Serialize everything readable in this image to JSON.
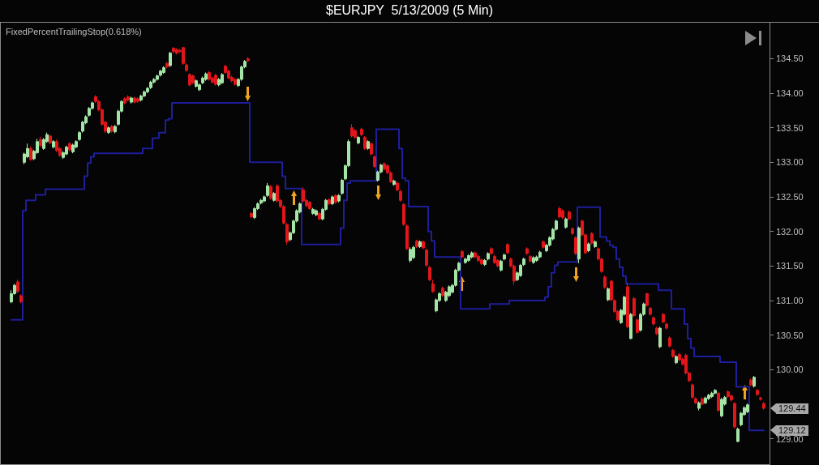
{
  "chart_data": {
    "type": "candlestick",
    "title": "$EURJPY  5/13/2009 (5 Min)",
    "subtitle": "FixedPercentTrailingStop(0.618%)",
    "categories": [
      null,
      null,
      null,
      null,
      null,
      null,
      null,
      null,
      null,
      null,
      null,
      null,
      null,
      null,
      null,
      null,
      null,
      null,
      null,
      null,
      null,
      null,
      null,
      null,
      null,
      null,
      null,
      null,
      null,
      null,
      null,
      null,
      null,
      null,
      null,
      null,
      null,
      null,
      null,
      null,
      null,
      null,
      null,
      null,
      null,
      null,
      null,
      null,
      null,
      null,
      null,
      null,
      null,
      null,
      null,
      null,
      null,
      null,
      null,
      null,
      null,
      null,
      null,
      null,
      null,
      null,
      null,
      null,
      null,
      null,
      null,
      null,
      null,
      null,
      null,
      null,
      null,
      null,
      null,
      null,
      null,
      null,
      null,
      null,
      null,
      null,
      null,
      null,
      null,
      null,
      null,
      null,
      null,
      null,
      null,
      null,
      null,
      null,
      null,
      null,
      null,
      null,
      null,
      null,
      null,
      null,
      null,
      null,
      null,
      null,
      null,
      null,
      null,
      null,
      null,
      null,
      null,
      null,
      null,
      null,
      null,
      null,
      null,
      null,
      null,
      null,
      null,
      null,
      null,
      null,
      null,
      null,
      null,
      null,
      null,
      null,
      null,
      null,
      null,
      null,
      null,
      null,
      null,
      null,
      null,
      null,
      null,
      null,
      null,
      null,
      null,
      null,
      null,
      null,
      null,
      null,
      null,
      null,
      null,
      null,
      null,
      null,
      null,
      null,
      null,
      null,
      null,
      null,
      null,
      null,
      null,
      null,
      null,
      null,
      null,
      null,
      null,
      null,
      null,
      null,
      null,
      null,
      null,
      null,
      null,
      null,
      null,
      null,
      null,
      null,
      null,
      null,
      null,
      null,
      null,
      null,
      null,
      null,
      null,
      null,
      null,
      null,
      null,
      null,
      null,
      null,
      null,
      null,
      null,
      null,
      null,
      null,
      null,
      null,
      null,
      null,
      null,
      null,
      null,
      null,
      null,
      null,
      null,
      null,
      null,
      null,
      null,
      null,
      null,
      null,
      null,
      null,
      null
    ],
    "ohlc": [
      [
        130.98,
        131.15,
        130.96,
        131.1
      ],
      [
        131.1,
        131.24,
        131.08,
        131.22
      ],
      [
        131.27,
        131.3,
        131.11,
        131.13
      ],
      [
        131.07,
        131.09,
        130.96,
        130.98
      ],
      [
        133.0,
        133.14,
        132.97,
        133.12
      ],
      [
        133.08,
        133.27,
        133.06,
        133.2
      ],
      [
        133.2,
        133.23,
        133.02,
        133.04
      ],
      [
        133.05,
        133.18,
        133.03,
        133.16
      ],
      [
        133.14,
        133.34,
        133.12,
        133.3
      ],
      [
        133.33,
        133.37,
        133.22,
        133.24
      ],
      [
        133.2,
        133.35,
        133.18,
        133.33
      ],
      [
        133.3,
        133.43,
        133.28,
        133.4
      ],
      [
        133.38,
        133.4,
        133.26,
        133.28
      ],
      [
        133.22,
        133.32,
        133.2,
        133.3
      ],
      [
        133.3,
        133.33,
        133.15,
        133.17
      ],
      [
        133.2,
        133.22,
        133.08,
        133.1
      ],
      [
        133.07,
        133.16,
        133.05,
        133.14
      ],
      [
        133.12,
        133.24,
        133.1,
        133.22
      ],
      [
        133.27,
        133.29,
        133.16,
        133.18
      ],
      [
        133.15,
        133.27,
        133.13,
        133.25
      ],
      [
        133.22,
        133.32,
        133.2,
        133.3
      ],
      [
        133.33,
        133.45,
        133.31,
        133.43
      ],
      [
        133.45,
        133.6,
        133.43,
        133.58
      ],
      [
        133.57,
        133.68,
        133.55,
        133.66
      ],
      [
        133.68,
        133.8,
        133.66,
        133.78
      ],
      [
        133.78,
        133.88,
        133.76,
        133.86
      ],
      [
        133.95,
        133.97,
        133.86,
        133.88
      ],
      [
        133.88,
        133.9,
        133.74,
        133.76
      ],
      [
        133.76,
        133.78,
        133.53,
        133.55
      ],
      [
        133.58,
        133.6,
        133.42,
        133.45
      ],
      [
        133.43,
        133.52,
        133.41,
        133.5
      ],
      [
        133.52,
        133.54,
        133.43,
        133.45
      ],
      [
        133.44,
        133.54,
        133.42,
        133.52
      ],
      [
        133.55,
        133.76,
        133.53,
        133.74
      ],
      [
        133.74,
        133.9,
        133.72,
        133.88
      ],
      [
        133.92,
        133.94,
        133.84,
        133.86
      ],
      [
        133.95,
        133.97,
        133.88,
        133.9
      ],
      [
        133.87,
        133.95,
        133.85,
        133.93
      ],
      [
        133.93,
        133.95,
        133.85,
        133.87
      ],
      [
        133.92,
        133.94,
        133.86,
        133.88
      ],
      [
        133.9,
        133.98,
        133.88,
        133.96
      ],
      [
        133.96,
        134.04,
        133.94,
        134.02
      ],
      [
        134.02,
        134.09,
        134.0,
        134.07
      ],
      [
        134.08,
        134.18,
        134.06,
        134.16
      ],
      [
        134.16,
        134.22,
        134.14,
        134.2
      ],
      [
        134.2,
        134.27,
        134.18,
        134.25
      ],
      [
        134.26,
        134.34,
        134.24,
        134.32
      ],
      [
        134.3,
        134.39,
        134.28,
        134.37
      ],
      [
        134.43,
        134.45,
        134.36,
        134.38
      ],
      [
        134.4,
        134.6,
        134.38,
        134.58
      ],
      [
        134.65,
        134.67,
        134.58,
        134.6
      ],
      [
        134.63,
        134.65,
        134.56,
        134.58
      ],
      [
        134.62,
        134.64,
        134.58,
        134.6
      ],
      [
        134.66,
        134.67,
        134.41,
        134.43
      ],
      [
        134.41,
        134.43,
        134.31,
        134.33
      ],
      [
        134.27,
        134.29,
        134.1,
        134.12
      ],
      [
        134.25,
        134.27,
        134.13,
        134.15
      ],
      [
        134.1,
        134.2,
        134.08,
        134.18
      ],
      [
        134.05,
        134.14,
        134.03,
        134.12
      ],
      [
        134.15,
        134.24,
        134.13,
        134.22
      ],
      [
        134.2,
        134.3,
        134.18,
        134.28
      ],
      [
        134.3,
        134.32,
        134.18,
        134.2
      ],
      [
        134.22,
        134.24,
        134.14,
        134.16
      ],
      [
        134.26,
        134.28,
        134.11,
        134.13
      ],
      [
        134.12,
        134.22,
        134.1,
        134.2
      ],
      [
        134.15,
        134.29,
        134.13,
        134.27
      ],
      [
        134.39,
        134.41,
        134.28,
        134.3
      ],
      [
        134.32,
        134.34,
        134.2,
        134.22
      ],
      [
        134.23,
        134.25,
        134.16,
        134.18
      ],
      [
        134.2,
        134.22,
        134.11,
        134.13
      ],
      [
        134.11,
        134.22,
        134.09,
        134.2
      ],
      [
        134.2,
        134.4,
        134.18,
        134.38
      ],
      [
        134.38,
        134.48,
        134.36,
        134.46
      ],
      [
        134.5,
        134.52,
        134.45,
        134.47
      ],
      [
        132.26,
        132.28,
        132.19,
        132.21
      ],
      [
        132.2,
        132.35,
        132.18,
        132.33
      ],
      [
        132.33,
        132.42,
        132.31,
        132.4
      ],
      [
        132.41,
        132.47,
        132.39,
        132.45
      ],
      [
        132.44,
        132.52,
        132.42,
        132.5
      ],
      [
        132.52,
        132.7,
        132.5,
        132.66
      ],
      [
        132.65,
        132.67,
        132.46,
        132.48
      ],
      [
        132.45,
        132.57,
        132.43,
        132.55
      ],
      [
        132.66,
        132.68,
        132.42,
        132.44
      ],
      [
        132.45,
        132.47,
        132.34,
        132.36
      ],
      [
        132.36,
        132.38,
        132.1,
        132.12
      ],
      [
        132.1,
        132.12,
        131.81,
        131.85
      ],
      [
        131.88,
        132.0,
        131.86,
        131.98
      ],
      [
        131.98,
        132.17,
        131.96,
        132.15
      ],
      [
        132.15,
        132.32,
        132.13,
        132.3
      ],
      [
        132.28,
        132.42,
        132.26,
        132.4
      ],
      [
        132.6,
        132.64,
        132.42,
        132.44
      ],
      [
        132.45,
        132.47,
        132.35,
        132.37
      ],
      [
        132.42,
        132.44,
        132.31,
        132.33
      ],
      [
        132.26,
        132.34,
        132.24,
        132.32
      ],
      [
        132.24,
        132.32,
        132.22,
        132.3
      ],
      [
        132.26,
        132.28,
        132.16,
        132.18
      ],
      [
        132.18,
        132.34,
        132.16,
        132.32
      ],
      [
        132.32,
        132.47,
        132.3,
        132.45
      ],
      [
        132.46,
        132.48,
        132.38,
        132.4
      ],
      [
        132.4,
        132.52,
        132.38,
        132.5
      ],
      [
        132.52,
        132.54,
        132.4,
        132.42
      ],
      [
        132.44,
        132.54,
        132.42,
        132.52
      ],
      [
        132.55,
        132.76,
        132.53,
        132.74
      ],
      [
        132.76,
        132.97,
        132.74,
        132.95
      ],
      [
        132.95,
        133.33,
        132.93,
        133.3
      ],
      [
        133.5,
        133.55,
        133.36,
        133.38
      ],
      [
        133.46,
        133.48,
        133.34,
        133.36
      ],
      [
        133.28,
        133.38,
        133.26,
        133.36
      ],
      [
        133.48,
        133.5,
        133.38,
        133.4
      ],
      [
        133.36,
        133.38,
        133.18,
        133.2
      ],
      [
        133.2,
        133.32,
        133.18,
        133.3
      ],
      [
        133.27,
        133.29,
        133.1,
        133.12
      ],
      [
        133.08,
        133.1,
        132.92,
        132.94
      ],
      [
        132.74,
        132.88,
        132.72,
        132.86
      ],
      [
        132.86,
        132.98,
        132.84,
        132.96
      ],
      [
        132.98,
        133.0,
        132.88,
        132.9
      ],
      [
        132.95,
        132.97,
        132.83,
        132.85
      ],
      [
        132.85,
        132.87,
        132.7,
        132.72
      ],
      [
        132.68,
        132.75,
        132.66,
        132.73
      ],
      [
        132.7,
        132.72,
        132.58,
        132.6
      ],
      [
        132.58,
        132.6,
        132.43,
        132.45
      ],
      [
        132.39,
        132.41,
        132.08,
        132.1
      ],
      [
        132.08,
        132.1,
        131.73,
        131.75
      ],
      [
        131.58,
        131.77,
        131.55,
        131.74
      ],
      [
        131.62,
        131.79,
        131.6,
        131.77
      ],
      [
        131.86,
        131.88,
        131.76,
        131.78
      ],
      [
        131.78,
        131.87,
        131.76,
        131.85
      ],
      [
        131.85,
        131.87,
        131.74,
        131.76
      ],
      [
        131.73,
        131.75,
        131.49,
        131.51
      ],
      [
        131.48,
        131.5,
        131.28,
        131.3
      ],
      [
        131.24,
        131.3,
        131.11,
        131.13
      ],
      [
        130.85,
        131.03,
        130.83,
        131.01
      ],
      [
        131.0,
        131.12,
        130.98,
        131.1
      ],
      [
        131.18,
        131.2,
        131.05,
        131.07
      ],
      [
        131.0,
        131.14,
        130.98,
        131.12
      ],
      [
        131.07,
        131.22,
        131.05,
        131.2
      ],
      [
        131.12,
        131.24,
        131.1,
        131.22
      ],
      [
        131.22,
        131.46,
        131.2,
        131.44
      ],
      [
        131.44,
        131.56,
        131.42,
        131.54
      ],
      [
        131.71,
        131.73,
        131.61,
        131.63
      ],
      [
        131.55,
        131.62,
        131.53,
        131.6
      ],
      [
        131.58,
        131.67,
        131.56,
        131.65
      ],
      [
        131.63,
        131.71,
        131.61,
        131.69
      ],
      [
        131.69,
        131.71,
        131.61,
        131.63
      ],
      [
        131.64,
        131.66,
        131.56,
        131.58
      ],
      [
        131.59,
        131.61,
        131.51,
        131.53
      ],
      [
        131.52,
        131.6,
        131.5,
        131.58
      ],
      [
        131.6,
        131.7,
        131.58,
        131.68
      ],
      [
        131.75,
        131.77,
        131.66,
        131.68
      ],
      [
        131.64,
        131.66,
        131.53,
        131.55
      ],
      [
        131.58,
        131.6,
        131.48,
        131.5
      ],
      [
        131.44,
        131.59,
        131.42,
        131.57
      ],
      [
        131.6,
        131.68,
        131.58,
        131.66
      ],
      [
        131.81,
        131.83,
        131.67,
        131.69
      ],
      [
        131.6,
        131.62,
        131.48,
        131.5
      ],
      [
        131.5,
        131.52,
        131.23,
        131.28
      ],
      [
        131.3,
        131.42,
        131.28,
        131.4
      ],
      [
        131.36,
        131.53,
        131.34,
        131.51
      ],
      [
        131.52,
        131.62,
        131.5,
        131.6
      ],
      [
        131.75,
        131.77,
        131.66,
        131.68
      ],
      [
        131.64,
        131.66,
        131.55,
        131.57
      ],
      [
        131.55,
        131.64,
        131.53,
        131.62
      ],
      [
        131.58,
        131.65,
        131.56,
        131.63
      ],
      [
        131.63,
        131.72,
        131.61,
        131.7
      ],
      [
        131.85,
        131.87,
        131.75,
        131.77
      ],
      [
        131.72,
        131.82,
        131.7,
        131.8
      ],
      [
        131.8,
        131.93,
        131.78,
        131.91
      ],
      [
        131.89,
        132.05,
        131.87,
        132.03
      ],
      [
        132.03,
        132.17,
        132.01,
        132.15
      ],
      [
        132.33,
        132.36,
        132.19,
        132.21
      ],
      [
        132.3,
        132.32,
        132.18,
        132.2
      ],
      [
        132.06,
        132.2,
        132.04,
        132.18
      ],
      [
        132.28,
        132.3,
        132.16,
        132.18
      ],
      [
        132.04,
        132.06,
        131.95,
        131.97
      ],
      [
        131.91,
        131.93,
        131.66,
        131.68
      ],
      [
        131.6,
        132.07,
        131.54,
        132.05
      ],
      [
        132.15,
        132.17,
        131.93,
        131.95
      ],
      [
        131.95,
        131.97,
        131.67,
        131.69
      ],
      [
        131.72,
        131.84,
        131.7,
        131.82
      ],
      [
        131.97,
        131.99,
        131.81,
        131.83
      ],
      [
        131.78,
        131.87,
        131.76,
        131.85
      ],
      [
        131.75,
        131.77,
        131.58,
        131.6
      ],
      [
        131.6,
        131.62,
        131.4,
        131.42
      ],
      [
        131.34,
        131.36,
        131.17,
        131.19
      ],
      [
        131.01,
        131.19,
        130.99,
        131.17
      ],
      [
        131.28,
        131.3,
        130.99,
        131.01
      ],
      [
        131.0,
        131.02,
        130.82,
        130.84
      ],
      [
        130.84,
        130.86,
        130.7,
        130.72
      ],
      [
        130.68,
        130.88,
        130.66,
        130.86
      ],
      [
        130.8,
        131.07,
        130.78,
        131.05
      ],
      [
        131.2,
        131.26,
        130.6,
        130.62
      ],
      [
        130.45,
        130.82,
        130.44,
        130.8
      ],
      [
        131.03,
        131.05,
        130.76,
        130.78
      ],
      [
        130.72,
        130.74,
        130.52,
        130.54
      ],
      [
        130.57,
        130.82,
        130.55,
        130.8
      ],
      [
        130.8,
        130.97,
        130.78,
        130.95
      ],
      [
        131.1,
        131.11,
        130.91,
        130.93
      ],
      [
        130.89,
        130.91,
        130.78,
        130.8
      ],
      [
        130.75,
        130.77,
        130.64,
        130.66
      ],
      [
        130.6,
        130.62,
        130.5,
        130.52
      ],
      [
        130.33,
        130.62,
        130.31,
        130.6
      ],
      [
        130.8,
        130.82,
        130.67,
        130.69
      ],
      [
        130.66,
        130.68,
        130.58,
        130.6
      ],
      [
        130.46,
        130.48,
        130.32,
        130.34
      ],
      [
        130.28,
        130.3,
        130.17,
        130.19
      ],
      [
        130.1,
        130.21,
        130.08,
        130.19
      ],
      [
        130.22,
        130.24,
        130.12,
        130.14
      ],
      [
        130.15,
        130.17,
        130.06,
        130.08
      ],
      [
        130.21,
        130.23,
        129.93,
        129.95
      ],
      [
        129.95,
        129.97,
        129.82,
        129.84
      ],
      [
        129.78,
        129.8,
        129.58,
        129.6
      ],
      [
        129.58,
        129.6,
        129.5,
        129.52
      ],
      [
        129.44,
        129.54,
        129.41,
        129.52
      ],
      [
        129.58,
        129.6,
        129.48,
        129.5
      ],
      [
        129.52,
        129.61,
        129.5,
        129.59
      ],
      [
        129.58,
        129.65,
        129.56,
        129.63
      ],
      [
        129.61,
        129.68,
        129.59,
        129.66
      ],
      [
        129.66,
        129.72,
        129.64,
        129.7
      ],
      [
        129.66,
        129.68,
        129.39,
        129.41
      ],
      [
        129.33,
        129.59,
        129.31,
        129.57
      ],
      [
        129.5,
        129.62,
        129.48,
        129.6
      ],
      [
        129.68,
        129.7,
        129.59,
        129.61
      ],
      [
        129.62,
        129.64,
        129.54,
        129.56
      ],
      [
        129.51,
        129.53,
        129.15,
        129.17
      ],
      [
        128.96,
        129.16,
        128.95,
        129.14
      ],
      [
        129.2,
        129.39,
        129.18,
        129.37
      ],
      [
        129.35,
        129.47,
        129.33,
        129.45
      ],
      [
        129.39,
        129.51,
        129.37,
        129.49
      ],
      [
        129.85,
        129.87,
        129.76,
        129.78
      ],
      [
        129.76,
        129.91,
        129.74,
        129.89
      ],
      [
        129.7,
        129.72,
        129.62,
        129.64
      ],
      [
        129.59,
        129.61,
        129.55,
        129.57
      ],
      [
        129.51,
        129.53,
        129.42,
        129.44
      ]
    ],
    "series": [
      {
        "type": "step",
        "color": "#1e1e9a",
        "values": [
          130.72,
          130.72,
          130.72,
          130.72,
          132.3,
          132.45,
          132.45,
          132.45,
          132.53,
          132.53,
          132.53,
          132.61,
          132.61,
          132.61,
          132.61,
          132.61,
          132.61,
          132.61,
          132.61,
          132.61,
          132.61,
          132.61,
          132.61,
          132.8,
          132.99,
          133.08,
          133.13,
          133.13,
          133.13,
          133.13,
          133.13,
          133.13,
          133.13,
          133.13,
          133.13,
          133.13,
          133.13,
          133.13,
          133.13,
          133.13,
          133.13,
          133.2,
          133.2,
          133.2,
          133.35,
          133.35,
          133.43,
          133.43,
          133.61,
          133.63,
          133.86,
          133.86,
          133.86,
          133.86,
          133.86,
          133.86,
          133.86,
          133.86,
          133.86,
          133.86,
          133.86,
          133.86,
          133.86,
          133.86,
          133.86,
          133.86,
          133.86,
          133.86,
          133.86,
          133.86,
          133.86,
          133.86,
          133.86,
          133.86,
          133,
          133,
          133,
          133,
          133,
          133,
          133,
          133,
          133,
          133,
          132.8,
          132.62,
          132.62,
          132.62,
          132.62,
          132.62,
          131.81,
          131.81,
          131.81,
          131.81,
          131.81,
          131.81,
          131.81,
          131.81,
          131.81,
          131.81,
          131.81,
          131.81,
          132.05,
          132.45,
          132.7,
          132.73,
          132.73,
          132.73,
          132.73,
          132.73,
          132.73,
          132.73,
          132.73,
          133.48,
          133.48,
          133.48,
          133.48,
          133.48,
          133.48,
          133.48,
          133.2,
          132.77,
          132.73,
          132.36,
          132.36,
          132.36,
          132.36,
          132.36,
          132.36,
          132,
          131.86,
          131.63,
          131.63,
          131.63,
          131.63,
          131.63,
          131.63,
          131.63,
          131.63,
          130.88,
          130.88,
          130.88,
          130.88,
          130.88,
          130.88,
          130.88,
          130.88,
          130.88,
          130.95,
          130.95,
          130.95,
          130.95,
          130.95,
          130.95,
          131,
          131,
          131,
          131,
          131,
          131,
          131,
          131,
          131,
          131,
          131,
          131.05,
          131.2,
          131.4,
          131.51,
          131.56,
          131.56,
          131.56,
          131.56,
          131.56,
          131.56,
          132.35,
          132.35,
          132.35,
          132.35,
          132.35,
          132.35,
          132.35,
          131.92,
          131.92,
          131.86,
          131.8,
          131.77,
          131.6,
          131.48,
          131.35,
          131.24,
          131.24,
          131.24,
          131.24,
          131.24,
          131.24,
          131.24,
          131.24,
          131.24,
          131.24,
          131.15,
          131.15,
          131.15,
          131.15,
          130.88,
          130.88,
          130.88,
          130.88,
          130.66,
          130.45,
          130.31,
          130.19,
          130.19,
          130.19,
          130.19,
          130.19,
          130.19,
          130.19,
          130.19,
          130.11,
          130.11,
          130.11,
          130.11,
          130.11,
          129.75,
          129.75,
          129.75,
          129.75,
          129.12,
          129.12,
          129.12,
          129.12,
          129.12
        ]
      }
    ],
    "ylim": [
      128.62,
      135.02
    ],
    "yticks": [
      {
        "value": 129,
        "label": "129.00"
      },
      {
        "value": 130,
        "label": "130.00"
      },
      {
        "value": 130.5,
        "label": "130.50"
      },
      {
        "value": 131,
        "label": "131.00"
      },
      {
        "value": 131.5,
        "label": "131.50"
      },
      {
        "value": 132,
        "label": "132.00"
      },
      {
        "value": 132.5,
        "label": "132.50"
      },
      {
        "value": 133,
        "label": "133.00"
      },
      {
        "value": 133.5,
        "label": "133.50"
      },
      {
        "value": 134,
        "label": "134.00"
      },
      {
        "value": 134.5,
        "label": "134.50"
      }
    ],
    "annotations": [
      "129.44",
      "129.12"
    ],
    "tick_labels": "y",
    "grid": false
  }
}
